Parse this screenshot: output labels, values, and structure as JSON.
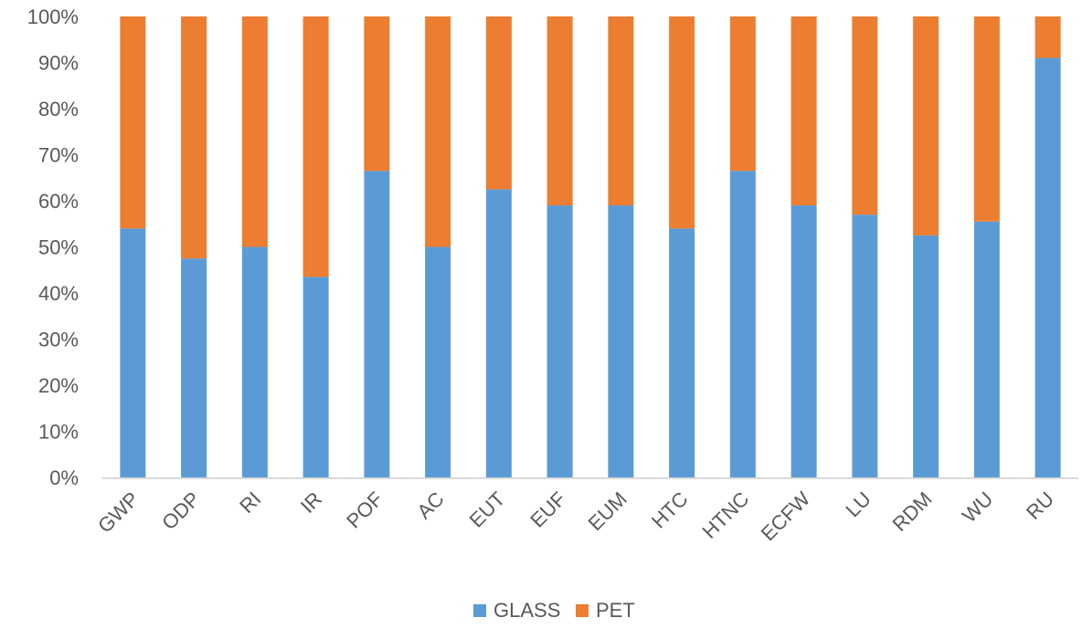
{
  "chart_data": {
    "type": "bar",
    "stacked": "percent",
    "title": "",
    "xlabel": "",
    "ylabel": "",
    "ylim": [
      0,
      100
    ],
    "y_ticks": [
      "0%",
      "10%",
      "20%",
      "30%",
      "40%",
      "50%",
      "60%",
      "70%",
      "80%",
      "90%",
      "100%"
    ],
    "grid": false,
    "legend_position": "bottom",
    "categories": [
      "GWP",
      "ODP",
      "RI",
      "IR",
      "POF",
      "AC",
      "EUT",
      "EUF",
      "EUM",
      "HTC",
      "HTNC",
      "ECFW",
      "LU",
      "RDM",
      "WU",
      "RU"
    ],
    "series": [
      {
        "name": "GLASS",
        "color": "#5B9BD5",
        "values": [
          54,
          47.5,
          50,
          43.5,
          66.5,
          50,
          62.5,
          59,
          59,
          54,
          66.5,
          59,
          57,
          52.5,
          55.5,
          91
        ]
      },
      {
        "name": "PET",
        "color": "#ED7D31",
        "values": [
          46,
          52.5,
          50,
          56.5,
          33.5,
          50,
          37.5,
          41,
          41,
          46,
          33.5,
          41,
          43,
          47.5,
          44.5,
          9
        ]
      }
    ]
  }
}
